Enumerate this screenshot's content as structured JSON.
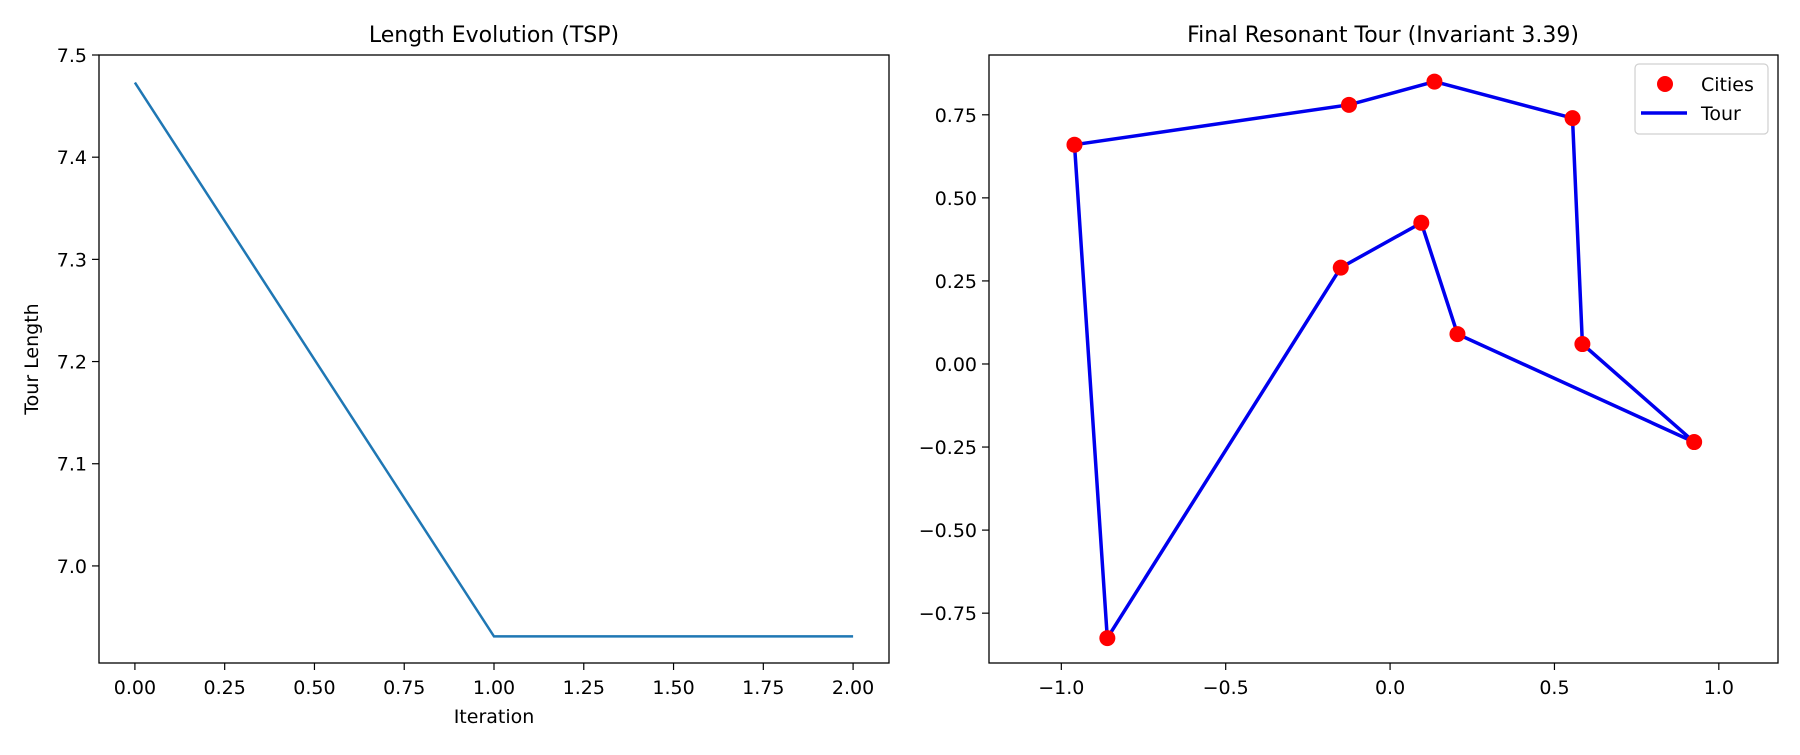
{
  "chart_data": [
    {
      "type": "line",
      "title": "Length Evolution (TSP)",
      "xlabel": "Iteration",
      "ylabel": "Tour Length",
      "xlim": [
        -0.1,
        2.1
      ],
      "ylim": [
        6.905,
        7.5
      ],
      "xticks": [
        "0.00",
        "0.25",
        "0.50",
        "0.75",
        "1.00",
        "1.25",
        "1.50",
        "1.75",
        "2.00"
      ],
      "yticks": [
        "7.0",
        "7.1",
        "7.2",
        "7.3",
        "7.4",
        "7.5"
      ],
      "grid": false,
      "colors": {
        "line": "#1f77b4"
      },
      "x": [
        0,
        1,
        2
      ],
      "y": [
        7.473,
        6.931,
        6.931
      ]
    },
    {
      "type": "scatter",
      "title": "Final Resonant Tour (Invariant 3.39)",
      "xlabel": "",
      "ylabel": "",
      "xlim": [
        -1.22,
        1.18
      ],
      "ylim": [
        -0.9,
        0.93
      ],
      "xticks": [
        "−1.0",
        "−0.5",
        "0.0",
        "0.5",
        "1.0"
      ],
      "yticks": [
        "−0.75",
        "−0.50",
        "−0.25",
        "0.00",
        "0.25",
        "0.50",
        "0.75"
      ],
      "grid": false,
      "legend_position": "top-right",
      "legend": [
        "Cities",
        "Tour"
      ],
      "colors": {
        "cities": "#ff0000",
        "tour": "#0000ee"
      },
      "cities": [
        {
          "x": -0.96,
          "y": 0.66
        },
        {
          "x": -0.125,
          "y": 0.78
        },
        {
          "x": 0.135,
          "y": 0.85
        },
        {
          "x": 0.555,
          "y": 0.74
        },
        {
          "x": 0.585,
          "y": 0.06
        },
        {
          "x": 0.925,
          "y": -0.235
        },
        {
          "x": 0.205,
          "y": 0.09
        },
        {
          "x": 0.095,
          "y": 0.425
        },
        {
          "x": -0.15,
          "y": 0.29
        },
        {
          "x": -0.86,
          "y": -0.825
        }
      ],
      "tour_order": [
        0,
        1,
        2,
        3,
        4,
        5,
        6,
        7,
        8,
        9,
        0
      ]
    }
  ]
}
